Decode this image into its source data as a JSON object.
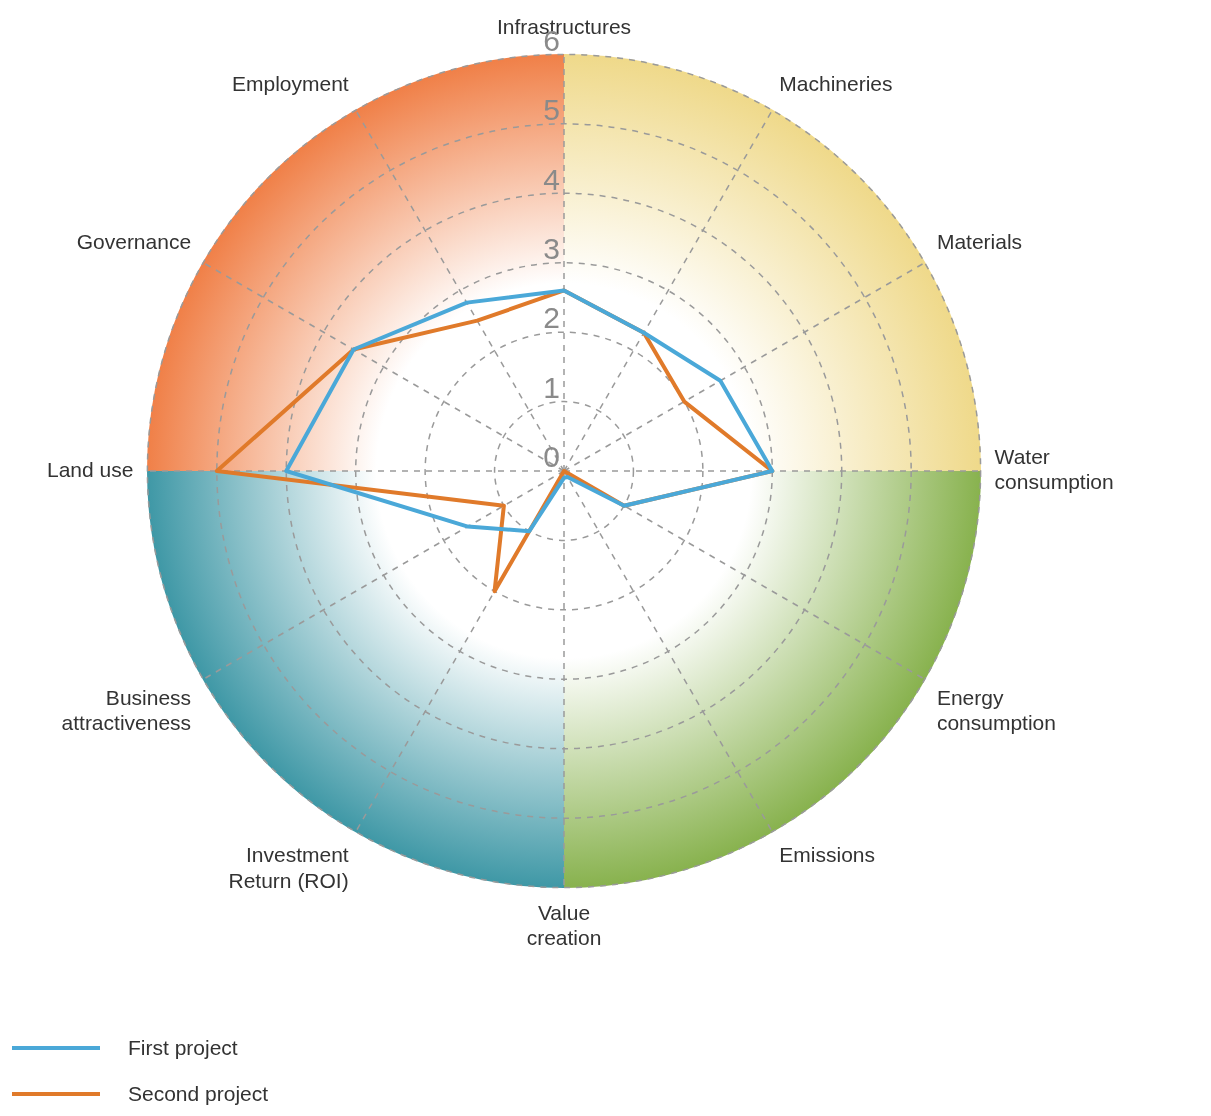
{
  "chart_data": {
    "type": "radar",
    "categories": [
      "Infrastructures",
      "Machineries",
      "Materials",
      "Water consumption",
      "Energy consumption",
      "Emissions",
      "Value creation",
      "Investment Return (ROI)",
      "Business attractiveness",
      "Land use",
      "Governance",
      "Employment"
    ],
    "series": [
      {
        "name": "First project",
        "color": "#4aa8d8",
        "values": [
          2.6,
          2.3,
          2.6,
          3,
          1,
          0.1,
          0.1,
          1,
          1.6,
          4,
          3.5,
          2.8
        ]
      },
      {
        "name": "Second project",
        "color": "#e07a2a",
        "values": [
          2.6,
          2.3,
          2,
          3,
          1,
          0,
          0,
          2,
          1,
          5,
          3.5,
          2.5
        ]
      }
    ],
    "ylim": [
      0,
      6
    ],
    "yticks": [
      0,
      1,
      2,
      3,
      4,
      5,
      6
    ],
    "grid": true,
    "line_style": "solid",
    "marker": "none",
    "legend": "bottom left"
  }
}
